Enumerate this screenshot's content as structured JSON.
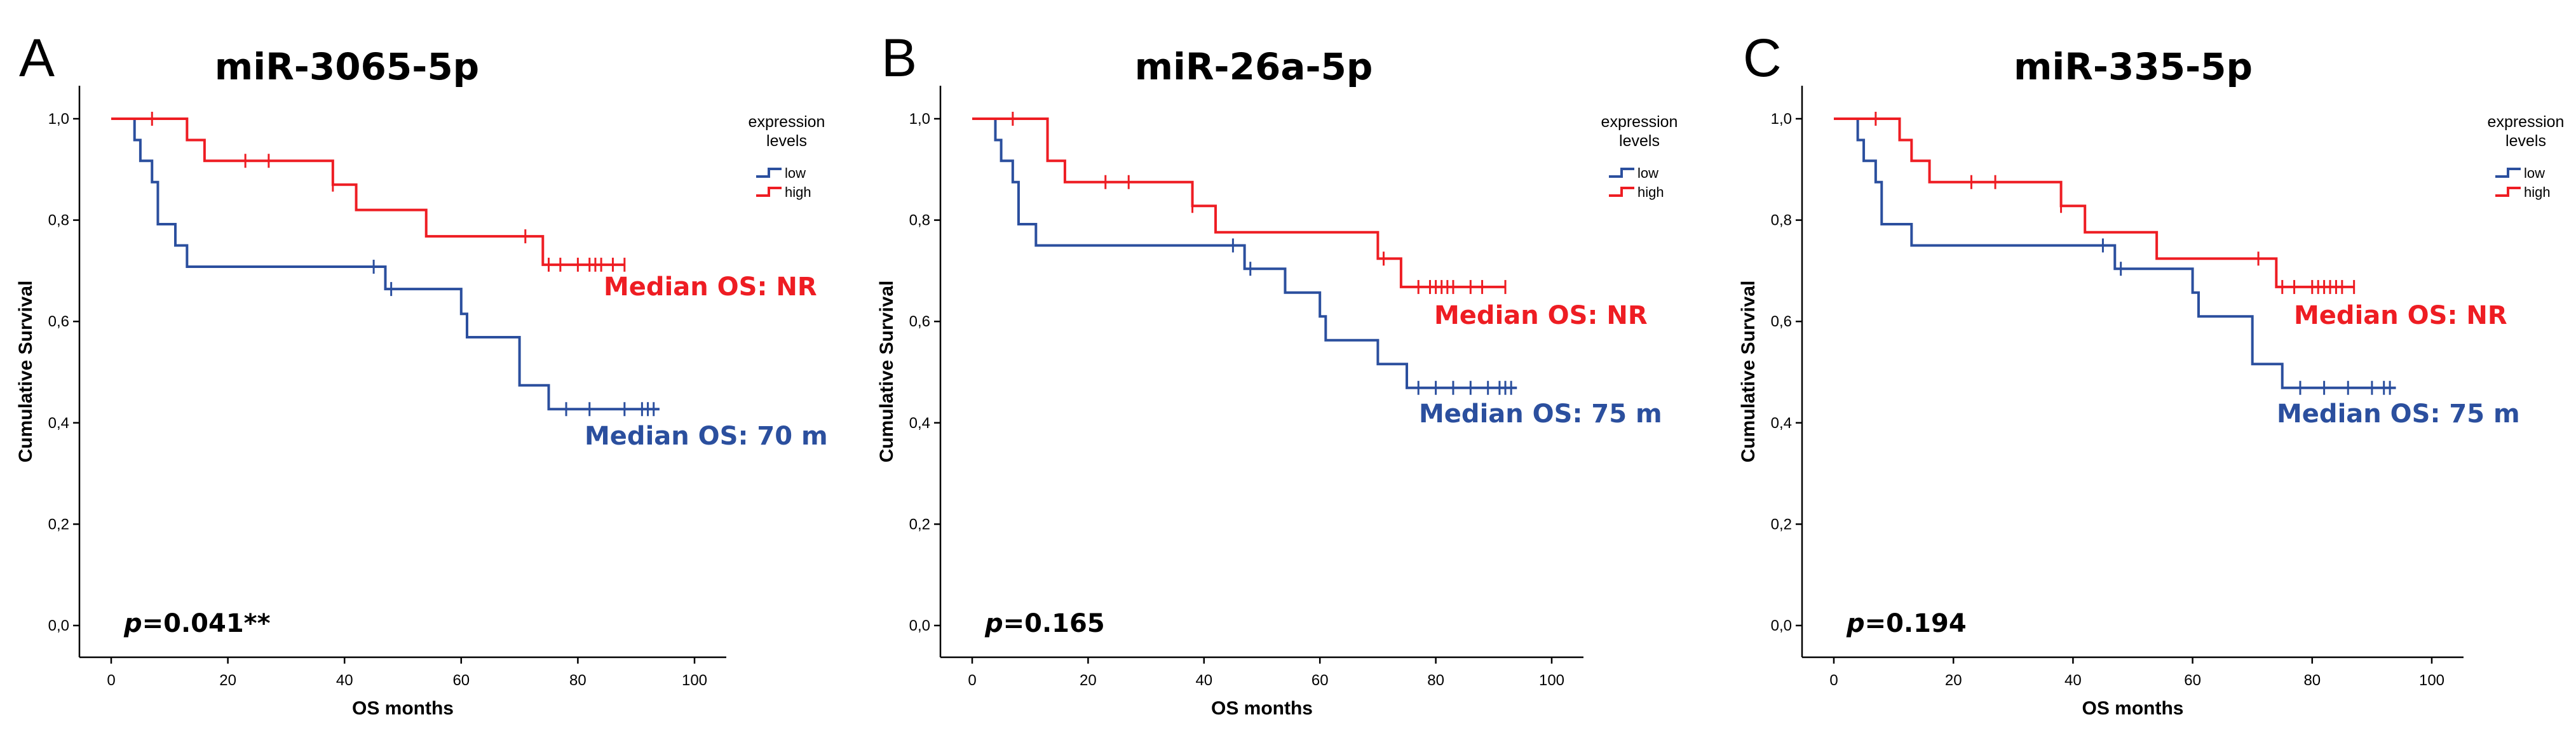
{
  "colors": {
    "low": "#2b4f9e",
    "high": "#ee1d23"
  },
  "chart_data": [
    {
      "type": "line",
      "panel": "A",
      "title": "miR-3065-5p",
      "xlabel": "OS months",
      "ylabel": "Cumulative Survival",
      "xlim": [
        0,
        100
      ],
      "ylim": [
        0.0,
        1.0
      ],
      "x_ticks": [
        "0",
        "20",
        "40",
        "60",
        "80",
        "100"
      ],
      "y_ticks": [
        "0,0",
        "0,2",
        "0,4",
        "0,6",
        "0,8",
        "1,0"
      ],
      "legend": {
        "title_line1": "expression",
        "title_line2": "levels",
        "position": "top-right"
      },
      "p_prefix": "p",
      "p_value": "=0.041**",
      "series": [
        {
          "name": "low",
          "steps": [
            [
              0,
              1.0
            ],
            [
              4,
              0.958
            ],
            [
              5,
              0.917
            ],
            [
              7,
              0.875
            ],
            [
              8,
              0.792
            ],
            [
              11,
              0.75
            ],
            [
              13,
              0.708
            ],
            [
              47,
              0.664
            ],
            [
              60,
              0.615
            ],
            [
              61,
              0.569
            ],
            [
              70,
              0.474
            ],
            [
              75,
              0.427
            ],
            [
              94,
              0.427
            ]
          ],
          "censored": [
            [
              45,
              0.708
            ],
            [
              48,
              0.664
            ],
            [
              78,
              0.427
            ],
            [
              82,
              0.427
            ],
            [
              88,
              0.427
            ],
            [
              91,
              0.427
            ],
            [
              92,
              0.427
            ],
            [
              93,
              0.427
            ]
          ],
          "median_label": "Median OS: 70 m"
        },
        {
          "name": "high",
          "steps": [
            [
              0,
              1.0
            ],
            [
              13,
              0.958
            ],
            [
              16,
              0.917
            ],
            [
              38,
              0.87
            ],
            [
              42,
              0.82
            ],
            [
              54,
              0.768
            ],
            [
              74,
              0.712
            ],
            [
              88,
              0.712
            ]
          ],
          "censored": [
            [
              7,
              1.0
            ],
            [
              23,
              0.917
            ],
            [
              27,
              0.917
            ],
            [
              38,
              0.87
            ],
            [
              71,
              0.768
            ],
            [
              75,
              0.712
            ],
            [
              77,
              0.712
            ],
            [
              80,
              0.712
            ],
            [
              82,
              0.712
            ],
            [
              83,
              0.712
            ],
            [
              84,
              0.712
            ],
            [
              86,
              0.712
            ],
            [
              88,
              0.712
            ]
          ],
          "median_label": "Median OS: NR"
        }
      ]
    },
    {
      "type": "line",
      "panel": "B",
      "title": "miR-26a-5p",
      "xlabel": "OS months",
      "ylabel": "Cumulative Survival",
      "xlim": [
        0,
        100
      ],
      "ylim": [
        0.0,
        1.0
      ],
      "x_ticks": [
        "0",
        "20",
        "40",
        "60",
        "80",
        "100"
      ],
      "y_ticks": [
        "0,0",
        "0,2",
        "0,4",
        "0,6",
        "0,8",
        "1,0"
      ],
      "legend": {
        "title_line1": "expression",
        "title_line2": "levels",
        "position": "top-right"
      },
      "p_prefix": "p",
      "p_value": "=0.165",
      "series": [
        {
          "name": "low",
          "steps": [
            [
              0,
              1.0
            ],
            [
              4,
              0.958
            ],
            [
              5,
              0.917
            ],
            [
              7,
              0.875
            ],
            [
              8,
              0.792
            ],
            [
              11,
              0.75
            ],
            [
              47,
              0.704
            ],
            [
              54,
              0.657
            ],
            [
              60,
              0.61
            ],
            [
              61,
              0.563
            ],
            [
              70,
              0.516
            ],
            [
              75,
              0.469
            ],
            [
              94,
              0.469
            ]
          ],
          "censored": [
            [
              45,
              0.75
            ],
            [
              48,
              0.704
            ],
            [
              77,
              0.469
            ],
            [
              80,
              0.469
            ],
            [
              83,
              0.469
            ],
            [
              86,
              0.469
            ],
            [
              89,
              0.469
            ],
            [
              91,
              0.469
            ],
            [
              92,
              0.469
            ],
            [
              93,
              0.469
            ]
          ],
          "median_label": "Median OS: 75 m"
        },
        {
          "name": "high",
          "steps": [
            [
              0,
              1.0
            ],
            [
              13,
              0.917
            ],
            [
              16,
              0.875
            ],
            [
              38,
              0.828
            ],
            [
              42,
              0.776
            ],
            [
              70,
              0.724
            ],
            [
              74,
              0.668
            ],
            [
              92,
              0.668
            ]
          ],
          "censored": [
            [
              7,
              1.0
            ],
            [
              23,
              0.875
            ],
            [
              27,
              0.875
            ],
            [
              38,
              0.828
            ],
            [
              71,
              0.724
            ],
            [
              77,
              0.668
            ],
            [
              79,
              0.668
            ],
            [
              80,
              0.668
            ],
            [
              81,
              0.668
            ],
            [
              82,
              0.668
            ],
            [
              83,
              0.668
            ],
            [
              86,
              0.668
            ],
            [
              88,
              0.668
            ],
            [
              92,
              0.668
            ]
          ],
          "median_label": "Median OS: NR"
        }
      ]
    },
    {
      "type": "line",
      "panel": "C",
      "title": "miR-335-5p",
      "xlabel": "OS months",
      "ylabel": "Cumulative Survival",
      "xlim": [
        0,
        100
      ],
      "ylim": [
        0.0,
        1.0
      ],
      "x_ticks": [
        "0",
        "20",
        "40",
        "60",
        "80",
        "100"
      ],
      "y_ticks": [
        "0,0",
        "0,2",
        "0,4",
        "0,6",
        "0,8",
        "1,0"
      ],
      "legend": {
        "title_line1": "expression",
        "title_line2": "levels",
        "position": "top-right"
      },
      "p_prefix": "p",
      "p_value": "=0.194",
      "series": [
        {
          "name": "low",
          "steps": [
            [
              0,
              1.0
            ],
            [
              4,
              0.958
            ],
            [
              5,
              0.917
            ],
            [
              7,
              0.875
            ],
            [
              8,
              0.792
            ],
            [
              13,
              0.75
            ],
            [
              47,
              0.704
            ],
            [
              60,
              0.657
            ],
            [
              61,
              0.61
            ],
            [
              70,
              0.516
            ],
            [
              75,
              0.469
            ],
            [
              94,
              0.469
            ]
          ],
          "censored": [
            [
              45,
              0.75
            ],
            [
              48,
              0.704
            ],
            [
              78,
              0.469
            ],
            [
              82,
              0.469
            ],
            [
              86,
              0.469
            ],
            [
              90,
              0.469
            ],
            [
              92,
              0.469
            ],
            [
              93,
              0.469
            ]
          ],
          "median_label": "Median OS: 75 m"
        },
        {
          "name": "high",
          "steps": [
            [
              0,
              1.0
            ],
            [
              11,
              0.958
            ],
            [
              13,
              0.917
            ],
            [
              16,
              0.875
            ],
            [
              38,
              0.828
            ],
            [
              42,
              0.776
            ],
            [
              54,
              0.724
            ],
            [
              74,
              0.668
            ],
            [
              87,
              0.668
            ]
          ],
          "censored": [
            [
              7,
              1.0
            ],
            [
              23,
              0.875
            ],
            [
              27,
              0.875
            ],
            [
              38,
              0.828
            ],
            [
              71,
              0.724
            ],
            [
              75,
              0.668
            ],
            [
              77,
              0.668
            ],
            [
              80,
              0.668
            ],
            [
              81,
              0.668
            ],
            [
              82,
              0.668
            ],
            [
              83,
              0.668
            ],
            [
              84,
              0.668
            ],
            [
              85,
              0.668
            ],
            [
              87,
              0.668
            ]
          ],
          "median_label": "Median OS: NR"
        }
      ]
    }
  ]
}
